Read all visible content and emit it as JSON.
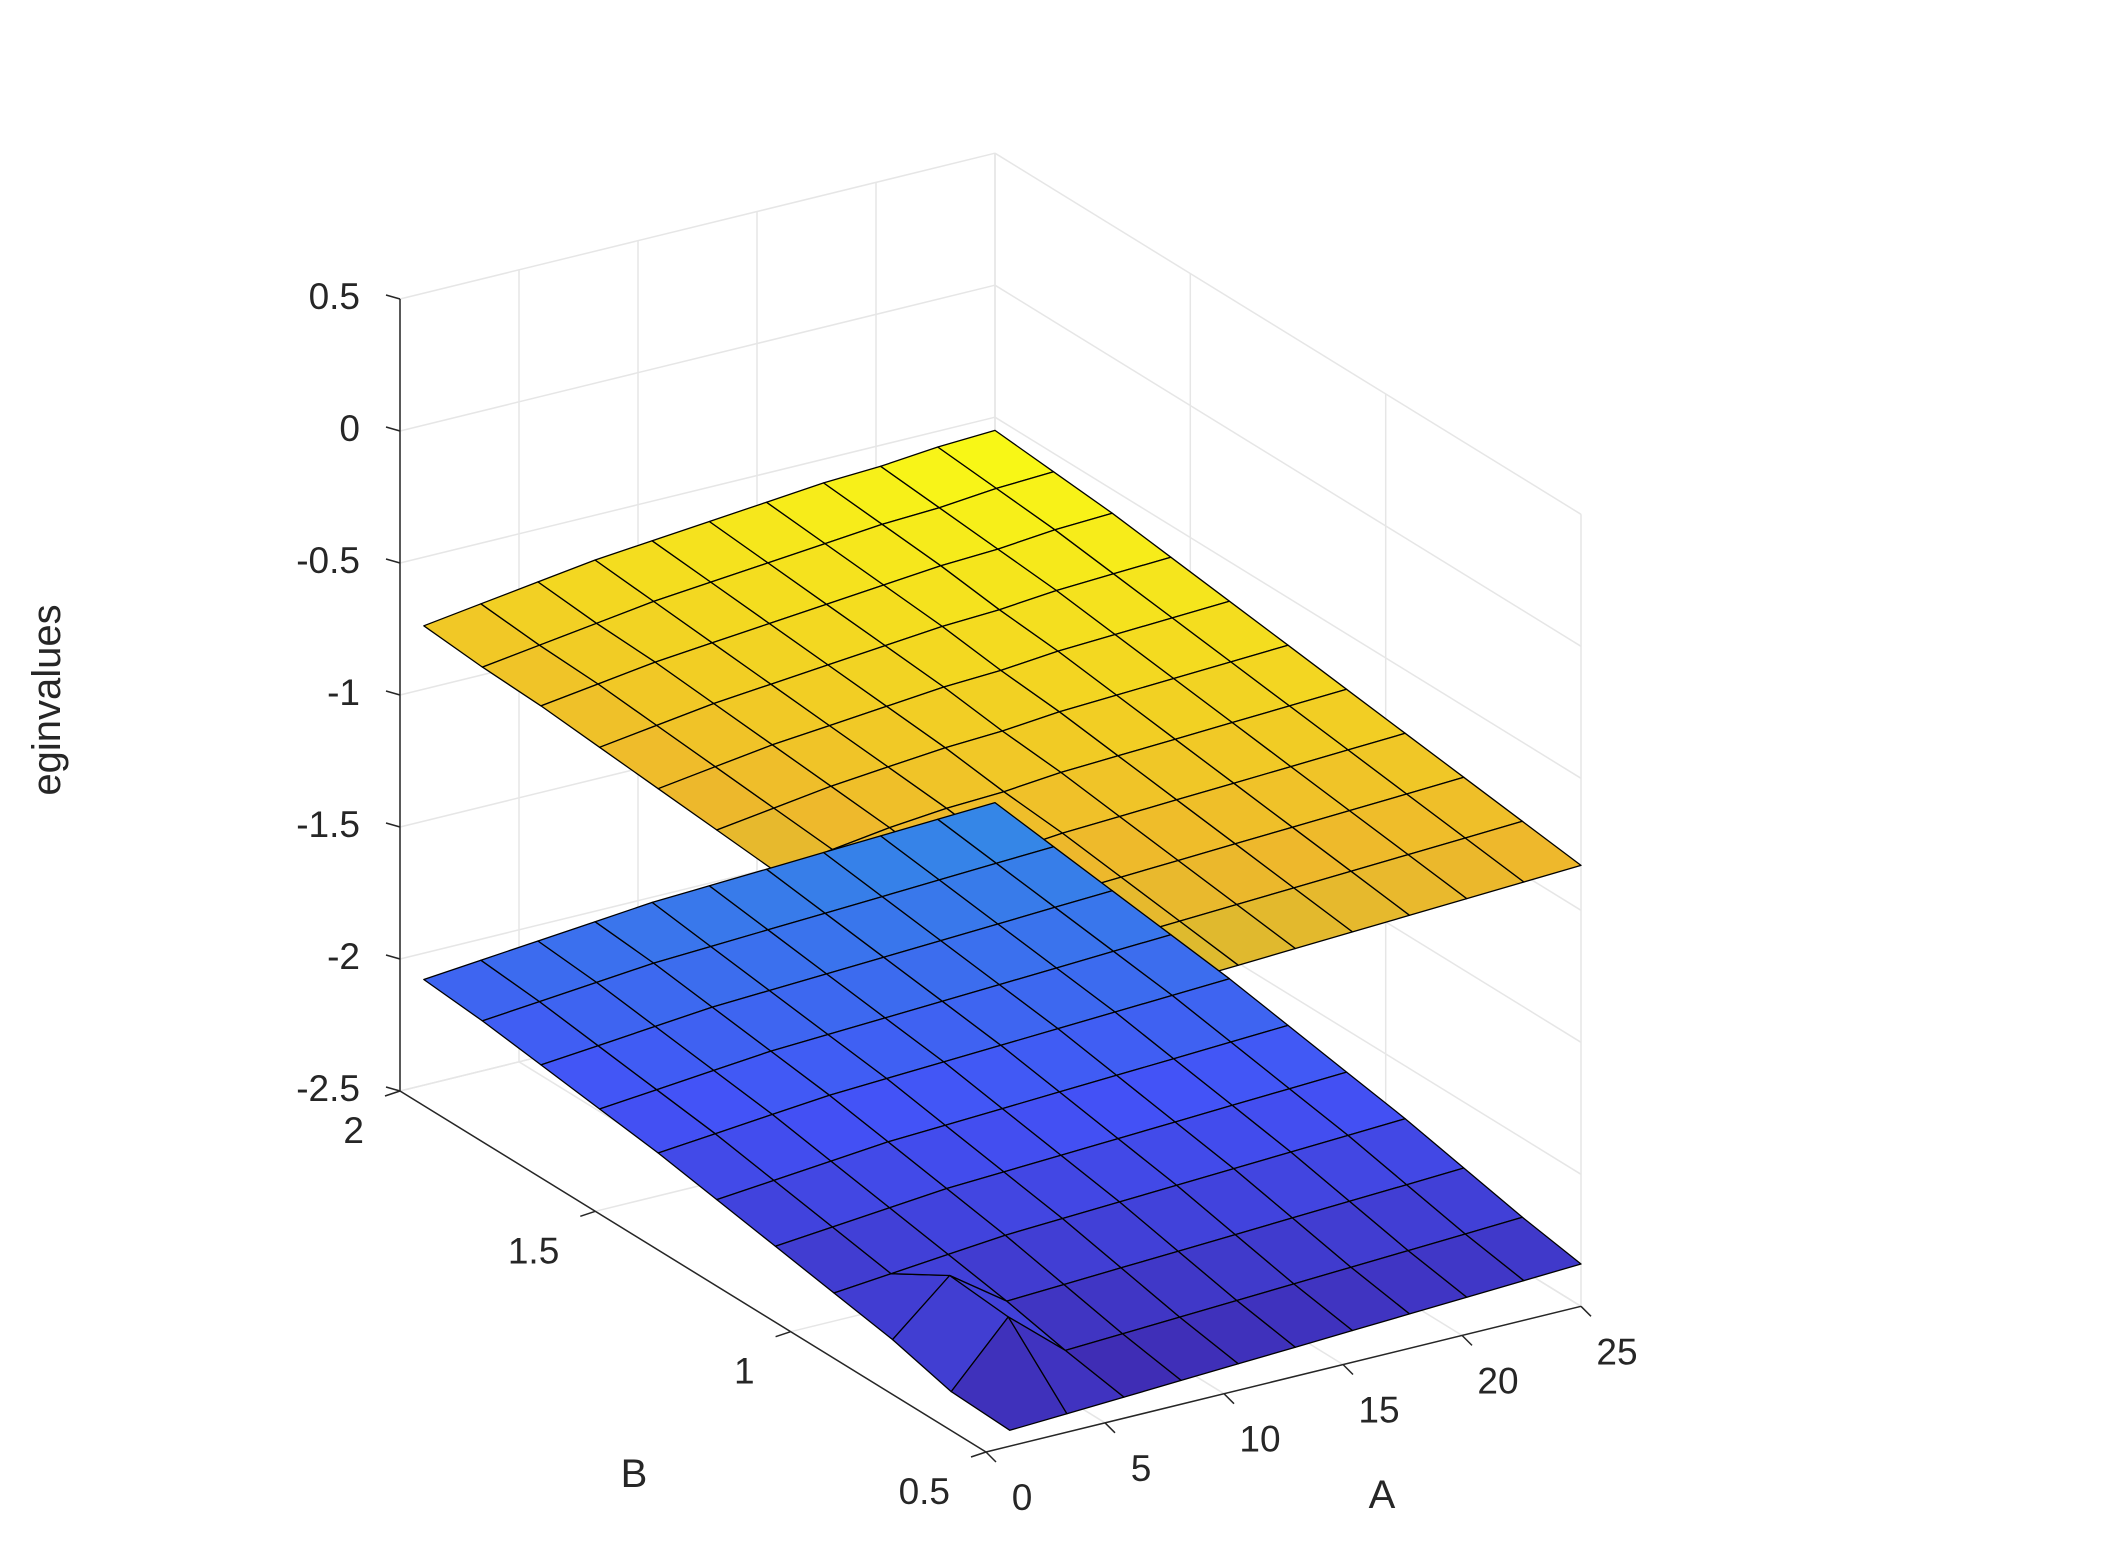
{
  "chart_data": {
    "type": "surface3d",
    "title": "",
    "xlabel": "A",
    "ylabel": "B",
    "zlabel": "eginvalues",
    "xlim": [
      0,
      25
    ],
    "ylim": [
      0.5,
      2
    ],
    "zlim": [
      -2.5,
      0.5
    ],
    "x_ticks": [
      0,
      5,
      10,
      15,
      20,
      25
    ],
    "y_ticks": [
      0.5,
      1,
      1.5,
      2
    ],
    "z_ticks": [
      -2.5,
      -2,
      -1.5,
      -1,
      -0.5,
      0,
      0.5
    ],
    "x_tick_labels": [
      "0",
      "5",
      "10",
      "15",
      "20",
      "25"
    ],
    "y_tick_labels": [
      "0.5",
      "1",
      "1.5",
      "2"
    ],
    "z_tick_labels": [
      "-2.5",
      "-2",
      "-1.5",
      "-1",
      "-0.5",
      "0",
      "0.5"
    ],
    "grid": true,
    "colormap": "parula",
    "colormap_stops": [
      "#3e26a8",
      "#4352f7",
      "#2f9ce0",
      "#1fbfb8",
      "#4bcb74",
      "#a4bf36",
      "#eeb82c",
      "#f9fb15"
    ],
    "x": [
      1,
      3.4,
      5.8,
      8.2,
      10.6,
      13,
      15.4,
      17.8,
      20.2,
      22.6,
      25
    ],
    "y": [
      0.5,
      0.65,
      0.8,
      0.95,
      1.1,
      1.25,
      1.4,
      1.55,
      1.7,
      1.85,
      2.0
    ],
    "series": [
      {
        "z": [
          [
            -0.94,
            -0.92,
            -0.91,
            -0.9,
            -0.89,
            -0.88,
            -0.87,
            -0.86,
            -0.85,
            -0.84,
            -0.83
          ],
          [
            -0.95,
            -0.91,
            -0.89,
            -0.87,
            -0.86,
            -0.85,
            -0.84,
            -0.83,
            -0.82,
            -0.81,
            -0.8
          ],
          [
            -0.92,
            -0.88,
            -0.86,
            -0.84,
            -0.83,
            -0.82,
            -0.81,
            -0.8,
            -0.79,
            -0.78,
            -0.77
          ],
          [
            -0.89,
            -0.86,
            -0.84,
            -0.82,
            -0.8,
            -0.79,
            -0.78,
            -0.77,
            -0.76,
            -0.75,
            -0.74
          ],
          [
            -0.87,
            -0.84,
            -0.81,
            -0.79,
            -0.78,
            -0.76,
            -0.75,
            -0.74,
            -0.73,
            -0.72,
            -0.71
          ],
          [
            -0.85,
            -0.82,
            -0.79,
            -0.77,
            -0.75,
            -0.74,
            -0.72,
            -0.71,
            -0.7,
            -0.69,
            -0.68
          ],
          [
            -0.83,
            -0.8,
            -0.77,
            -0.75,
            -0.73,
            -0.71,
            -0.7,
            -0.68,
            -0.67,
            -0.66,
            -0.65
          ],
          [
            -0.81,
            -0.78,
            -0.75,
            -0.73,
            -0.71,
            -0.69,
            -0.67,
            -0.66,
            -0.64,
            -0.63,
            -0.62
          ],
          [
            -0.79,
            -0.76,
            -0.73,
            -0.71,
            -0.69,
            -0.67,
            -0.65,
            -0.63,
            -0.62,
            -0.6,
            -0.59
          ],
          [
            -0.78,
            -0.75,
            -0.72,
            -0.69,
            -0.67,
            -0.65,
            -0.63,
            -0.61,
            -0.6,
            -0.58,
            -0.57
          ],
          [
            -0.76,
            -0.73,
            -0.7,
            -0.67,
            -0.65,
            -0.63,
            -0.61,
            -0.59,
            -0.58,
            -0.56,
            -0.55
          ]
        ]
      },
      {
        "z": [
          [
            -2.44,
            -2.43,
            -2.42,
            -2.41,
            -2.4,
            -2.39,
            -2.38,
            -2.37,
            -2.36,
            -2.35,
            -2.34
          ],
          [
            -2.43,
            -2.2,
            -2.38,
            -2.37,
            -2.36,
            -2.35,
            -2.34,
            -2.33,
            -2.32,
            -2.31,
            -2.3
          ],
          [
            -2.37,
            -2.18,
            -2.33,
            -2.32,
            -2.31,
            -2.3,
            -2.29,
            -2.28,
            -2.27,
            -2.26,
            -2.25
          ],
          [
            -2.33,
            -2.31,
            -2.29,
            -2.27,
            -2.26,
            -2.25,
            -2.24,
            -2.23,
            -2.22,
            -2.21,
            -2.2
          ],
          [
            -2.29,
            -2.27,
            -2.25,
            -2.23,
            -2.22,
            -2.21,
            -2.2,
            -2.19,
            -2.18,
            -2.17,
            -2.16
          ],
          [
            -2.25,
            -2.23,
            -2.21,
            -2.19,
            -2.18,
            -2.17,
            -2.16,
            -2.15,
            -2.14,
            -2.13,
            -2.12
          ],
          [
            -2.21,
            -2.19,
            -2.17,
            -2.15,
            -2.14,
            -2.13,
            -2.12,
            -2.11,
            -2.1,
            -2.09,
            -2.08
          ],
          [
            -2.18,
            -2.16,
            -2.14,
            -2.12,
            -2.11,
            -2.1,
            -2.09,
            -2.08,
            -2.07,
            -2.06,
            -2.05
          ],
          [
            -2.15,
            -2.13,
            -2.11,
            -2.09,
            -2.08,
            -2.07,
            -2.06,
            -2.05,
            -2.04,
            -2.03,
            -2.02
          ],
          [
            -2.12,
            -2.1,
            -2.08,
            -2.06,
            -2.05,
            -2.04,
            -2.03,
            -2.02,
            -2.01,
            -2.0,
            -1.99
          ],
          [
            -2.1,
            -2.08,
            -2.06,
            -2.04,
            -2.02,
            -2.01,
            -2.0,
            -1.99,
            -1.98,
            -1.97,
            -1.96
          ]
        ]
      }
    ]
  }
}
